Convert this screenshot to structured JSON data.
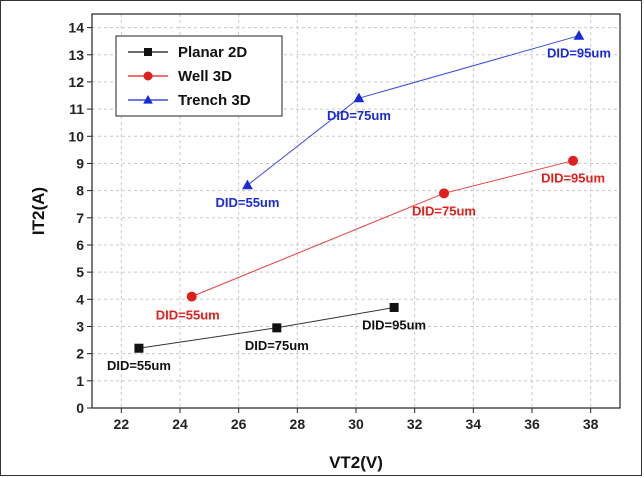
{
  "chart_data": {
    "type": "line",
    "xlabel": "VT2(V)",
    "ylabel": "IT2(A)",
    "xlim": [
      21,
      39
    ],
    "ylim": [
      0,
      14.5
    ],
    "xticks": [
      22,
      24,
      26,
      28,
      30,
      32,
      34,
      36,
      38
    ],
    "yticks": [
      0,
      1,
      2,
      3,
      4,
      5,
      6,
      7,
      8,
      9,
      10,
      11,
      12,
      13,
      14
    ],
    "grid": true,
    "legend_position": "top-left",
    "series": [
      {
        "name": "Planar 2D",
        "color": "#111111",
        "marker": "square",
        "points": [
          {
            "x": 22.6,
            "y": 2.2,
            "label": "DID=55um",
            "label_anchor": "below"
          },
          {
            "x": 27.3,
            "y": 2.95,
            "label": "DID=75um",
            "label_anchor": "below"
          },
          {
            "x": 31.3,
            "y": 3.7,
            "label": "DID=95um",
            "label_anchor": "below"
          }
        ]
      },
      {
        "name": "Well 3D",
        "color": "#e0201c",
        "marker": "circle",
        "points": [
          {
            "x": 24.4,
            "y": 4.1,
            "label": "DID=55um",
            "label_anchor": "below-left"
          },
          {
            "x": 33.0,
            "y": 7.9,
            "label": "DID=75um",
            "label_anchor": "below"
          },
          {
            "x": 37.4,
            "y": 9.1,
            "label": "DID=95um",
            "label_anchor": "below"
          }
        ]
      },
      {
        "name": "Trench 3D",
        "color": "#1a2bd6",
        "marker": "triangle",
        "points": [
          {
            "x": 26.3,
            "y": 8.2,
            "label": "DID=55um",
            "label_anchor": "below"
          },
          {
            "x": 30.1,
            "y": 11.4,
            "label": "DID=75um",
            "label_anchor": "below"
          },
          {
            "x": 37.6,
            "y": 13.7,
            "label": "DID=95um",
            "label_anchor": "below"
          }
        ]
      }
    ]
  }
}
